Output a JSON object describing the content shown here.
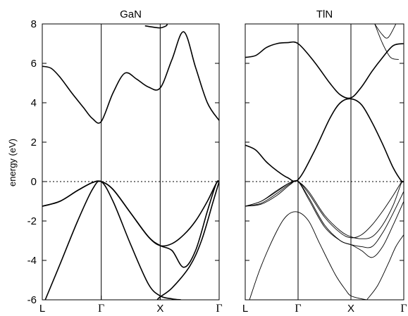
{
  "chart_data": [
    {
      "type": "line",
      "title": "GaN",
      "ylabel": "energy (eV)",
      "xlabel": "",
      "ylim": [
        -6,
        8
      ],
      "yticks": [
        "-6",
        "-4",
        "-2",
        "0",
        "2",
        "4",
        "6",
        "8"
      ],
      "kpoints": [
        "L",
        "Γ",
        "X",
        "Γ"
      ],
      "kpoint_positions": [
        0,
        1,
        2,
        3
      ],
      "fermi_level": 0,
      "series": [
        {
          "x": [
            0,
            0.15,
            0.3,
            0.5,
            0.7,
            0.85,
            1.0,
            1.2,
            1.4,
            1.6,
            1.8,
            2.0,
            2.2,
            2.4,
            2.6,
            2.8,
            3.0
          ],
          "y": [
            5.85,
            5.75,
            5.3,
            4.5,
            3.75,
            3.2,
            3.05,
            4.5,
            5.5,
            5.2,
            4.8,
            4.75,
            6.2,
            7.6,
            5.8,
            4.0,
            3.1
          ]
        },
        {
          "x": [
            0,
            0.3,
            0.6,
            0.85,
            1.0,
            1.2,
            1.5,
            1.8,
            2.0,
            2.2,
            2.4,
            2.6,
            2.8,
            2.95,
            3.0
          ],
          "y": [
            -1.25,
            -1.0,
            -0.45,
            -0.05,
            0,
            -0.4,
            -1.6,
            -2.8,
            -3.25,
            -3.5,
            -4.35,
            -3.5,
            -1.5,
            -0.1,
            0
          ]
        },
        {
          "x": [
            0,
            0.3,
            0.6,
            0.85,
            1.0,
            1.2,
            1.5,
            1.8,
            2.0,
            2.2,
            2.4,
            2.6,
            2.8,
            2.95,
            3.0
          ],
          "y": [
            -1.25,
            -1.0,
            -0.45,
            -0.05,
            0,
            -0.4,
            -1.6,
            -2.8,
            -3.25,
            -3.15,
            -2.7,
            -2.0,
            -1.0,
            -0.1,
            0
          ]
        },
        {
          "x": [
            0.05,
            0.3,
            0.6,
            0.85,
            1.0,
            1.2,
            1.5,
            1.8,
            2.0,
            2.2,
            2.35
          ],
          "y": [
            -6,
            -4.2,
            -2.0,
            -0.4,
            0,
            -1.0,
            -3.2,
            -5.2,
            -5.8,
            -5.95,
            -6
          ]
        },
        {
          "x": [
            1.95,
            2.0,
            2.2,
            2.5,
            2.7,
            2.9,
            3.0
          ],
          "y": [
            -6,
            -5.85,
            -5.4,
            -4.3,
            -3.0,
            -1.0,
            0
          ]
        },
        {
          "x": [
            1.75,
            1.85,
            2.0,
            2.1,
            2.12
          ],
          "y": [
            7.9,
            7.85,
            7.8,
            7.9,
            8
          ]
        }
      ]
    },
    {
      "type": "line",
      "title": "TlN",
      "xlabel": "",
      "ylim": [
        -6,
        8
      ],
      "kpoints": [
        "L",
        "Γ",
        "X",
        "Γ"
      ],
      "kpoint_positions": [
        0,
        1,
        2,
        3
      ],
      "fermi_level": 0,
      "series": [
        {
          "x": [
            0,
            0.2,
            0.4,
            0.6,
            0.8,
            1.0,
            1.3,
            1.6,
            1.8,
            2.0,
            2.2,
            2.4,
            2.6,
            2.8,
            3.0
          ],
          "y": [
            6.3,
            6.4,
            6.8,
            7.0,
            7.05,
            7.0,
            6.1,
            5.0,
            4.4,
            4.25,
            4.8,
            5.6,
            6.3,
            6.9,
            7.0
          ]
        },
        {
          "x": [
            0,
            0.2,
            0.4,
            0.6,
            0.8,
            1.0,
            1.3,
            1.6,
            1.8,
            2.0,
            2.2,
            2.4,
            2.6,
            2.8,
            2.95,
            3.0
          ],
          "y": [
            1.85,
            1.6,
            1.0,
            0.55,
            0.2,
            0.1,
            1.5,
            3.2,
            4.0,
            4.2,
            3.9,
            3.0,
            1.9,
            0.7,
            0.05,
            0
          ]
        },
        {
          "x": [
            0,
            0.3,
            0.6,
            0.85,
            1.0,
            1.2,
            1.5,
            1.8,
            2.0,
            2.2,
            2.4,
            2.6,
            2.8,
            2.95,
            3.0
          ],
          "y": [
            -1.25,
            -1.0,
            -0.45,
            -0.05,
            0,
            -0.5,
            -1.7,
            -2.5,
            -2.8,
            -2.9,
            -2.8,
            -2.2,
            -1.2,
            -0.1,
            0
          ]
        },
        {
          "x": [
            0,
            0.3,
            0.6,
            0.85,
            1.0,
            1.2,
            1.5,
            1.8,
            2.0,
            2.2,
            2.4,
            2.6,
            2.8,
            2.95,
            3.0
          ],
          "y": [
            -1.25,
            -1.0,
            -0.5,
            -0.05,
            0,
            -0.6,
            -1.8,
            -2.6,
            -2.85,
            -2.7,
            -2.2,
            -1.5,
            -0.7,
            -0.05,
            0
          ]
        },
        {
          "x": [
            0,
            0.3,
            0.6,
            0.85,
            1.0,
            1.2,
            1.5,
            1.8,
            2.0,
            2.2,
            2.4,
            2.6,
            2.8,
            3.0
          ],
          "y": [
            -1.25,
            -1.1,
            -0.6,
            -0.1,
            0,
            -0.8,
            -2.2,
            -3.0,
            -3.2,
            -3.5,
            -3.85,
            -3.3,
            -2.2,
            -1.0
          ]
        },
        {
          "x": [
            0,
            0.3,
            0.6,
            0.85,
            1.0,
            1.2,
            1.5,
            1.8,
            2.0,
            2.2,
            2.4,
            2.6,
            2.8,
            3.0
          ],
          "y": [
            -1.25,
            -1.15,
            -0.7,
            -0.15,
            0,
            -0.9,
            -2.3,
            -3.0,
            -3.2,
            -3.3,
            -3.3,
            -2.6,
            -1.6,
            -0.5
          ]
        },
        {
          "x": [
            0.08,
            0.3,
            0.6,
            0.8,
            1.0,
            1.2,
            1.4,
            1.7,
            1.9,
            2.0,
            2.2,
            2.3
          ],
          "y": [
            -6,
            -4.3,
            -2.5,
            -1.7,
            -1.55,
            -2.0,
            -3.1,
            -4.7,
            -5.5,
            -5.8,
            -5.95,
            -6
          ]
        },
        {
          "x": [
            2.3,
            2.5,
            2.7,
            2.85,
            3.0
          ],
          "y": [
            -6,
            -5.3,
            -4.2,
            -3.3,
            -2.7
          ]
        },
        {
          "x": [
            2.45,
            2.6,
            2.75,
            2.9
          ],
          "y": [
            8,
            7.0,
            6.3,
            6.2
          ]
        },
        {
          "x": [
            2.45,
            2.58,
            2.7,
            2.85
          ],
          "y": [
            8,
            7.5,
            7.3,
            8
          ]
        }
      ]
    }
  ]
}
